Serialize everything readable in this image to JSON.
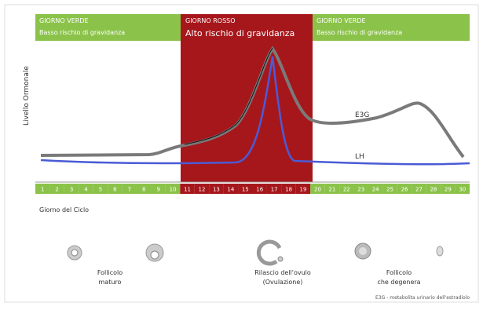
{
  "bands": [
    {
      "title": "GIORNO VERDE",
      "subtitle": "Basso rischio di gravidanza"
    },
    {
      "title": "GIORNO ROSSO",
      "subtitle": "Alto rischio di gravidanza"
    },
    {
      "title": "GIORNO VERDE",
      "subtitle": "Basso rischio di gravidanza"
    }
  ],
  "y_axis_label": "Livello Ormonale",
  "curves": {
    "e3g": "E3G",
    "lh": "LH"
  },
  "days": [
    1,
    2,
    3,
    4,
    5,
    6,
    7,
    8,
    9,
    10,
    11,
    12,
    13,
    14,
    15,
    16,
    17,
    18,
    19,
    20,
    21,
    22,
    23,
    24,
    25,
    26,
    27,
    28,
    29,
    30
  ],
  "x_axis_label": "Giorno del Ciclo",
  "stages": [
    {
      "label": "Follicolo",
      "label2": "maturo"
    },
    {
      "label": "Rilascio dell'ovulo",
      "label2": "(Ovulazione)"
    },
    {
      "label": "Follicolo",
      "label2": "che degenera"
    }
  ],
  "footnote": "E3G - metabolita urinario dell'estradiolo"
}
